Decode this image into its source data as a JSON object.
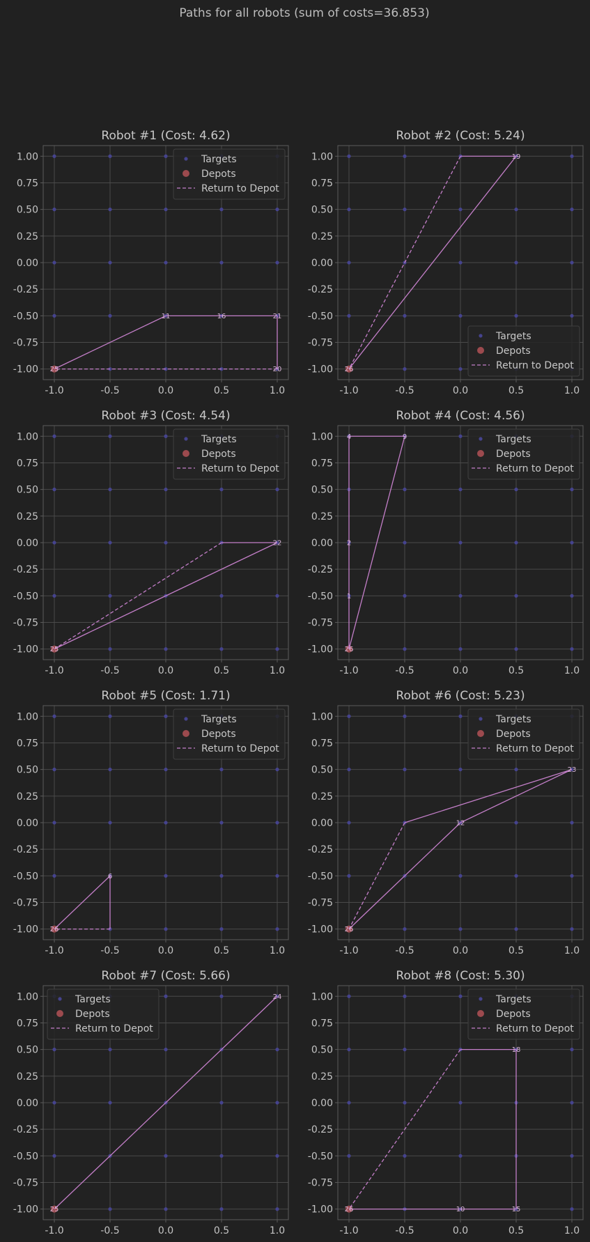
{
  "suptitle": "Paths for all robots (sum of costs=36.853)",
  "colors": {
    "background": "#212121",
    "axes_bg": "#222222",
    "grid": "#4a4a4a",
    "spine": "#5c5c5c",
    "targets": "#45438e",
    "depots": "#9c4a4e",
    "path": "#c47fc9",
    "label": "#d8b6d8",
    "text": "#c8c8c8"
  },
  "legend_labels": {
    "targets": "Targets",
    "depots": "Depots",
    "return": "Return to Depot"
  },
  "chart_data": [
    {
      "type": "scatter",
      "title": "Robot #1 (Cost: 4.62)",
      "xlim": [
        -1.1,
        1.1
      ],
      "ylim": [
        -1.1,
        1.1
      ],
      "xticks": [
        "-1.0",
        "-0.5",
        "0.0",
        "0.5",
        "1.0"
      ],
      "yticks": [
        "1.00",
        "0.75",
        "0.50",
        "0.25",
        "0.00",
        "-0.25",
        "-0.50",
        "-0.75",
        "-1.00"
      ],
      "grid": true,
      "legend": "top-right",
      "path": [
        [
          -1,
          -1
        ],
        [
          0,
          -0.5
        ],
        [
          0.5,
          -0.5
        ],
        [
          1,
          -0.5
        ],
        [
          1,
          -1
        ]
      ],
      "return_path": [
        [
          1,
          -1
        ],
        [
          -1,
          -1
        ]
      ],
      "labels": [
        {
          "x": -1,
          "y": -1,
          "text": "25"
        },
        {
          "x": 0,
          "y": -0.5,
          "text": "11"
        },
        {
          "x": 0.5,
          "y": -0.5,
          "text": "16"
        },
        {
          "x": 1,
          "y": -0.5,
          "text": "21"
        },
        {
          "x": 1,
          "y": -1,
          "text": "20"
        }
      ]
    },
    {
      "type": "scatter",
      "title": "Robot #2 (Cost: 5.24)",
      "xlim": [
        -1.1,
        1.1
      ],
      "ylim": [
        -1.1,
        1.1
      ],
      "xticks": [
        "-1.0",
        "-0.5",
        "0.0",
        "0.5",
        "1.0"
      ],
      "yticks": [
        "1.00",
        "0.75",
        "0.50",
        "0.25",
        "0.00",
        "-0.25",
        "-0.50",
        "-0.75",
        "-1.00"
      ],
      "grid": true,
      "legend": "bottom-right",
      "path": [
        [
          -1,
          -1
        ],
        [
          0.5,
          1
        ],
        [
          0,
          1
        ]
      ],
      "return_path": [
        [
          0,
          1
        ],
        [
          -1,
          -1
        ]
      ],
      "labels": [
        {
          "x": -1,
          "y": -1,
          "text": "26"
        },
        {
          "x": 0.5,
          "y": 1,
          "text": "19"
        }
      ]
    },
    {
      "type": "scatter",
      "title": "Robot #3 (Cost: 4.54)",
      "xlim": [
        -1.1,
        1.1
      ],
      "ylim": [
        -1.1,
        1.1
      ],
      "xticks": [
        "-1.0",
        "-0.5",
        "0.0",
        "0.5",
        "1.0"
      ],
      "yticks": [
        "1.00",
        "0.75",
        "0.50",
        "0.25",
        "0.00",
        "-0.25",
        "-0.50",
        "-0.75",
        "-1.00"
      ],
      "grid": true,
      "legend": "top-right",
      "path": [
        [
          -1,
          -1
        ],
        [
          1,
          0
        ],
        [
          0.5,
          0
        ]
      ],
      "return_path": [
        [
          0.5,
          0
        ],
        [
          -1,
          -1
        ]
      ],
      "labels": [
        {
          "x": -1,
          "y": -1,
          "text": "25"
        },
        {
          "x": 1,
          "y": 0,
          "text": "22"
        }
      ]
    },
    {
      "type": "scatter",
      "title": "Robot #4 (Cost: 4.56)",
      "xlim": [
        -1.1,
        1.1
      ],
      "ylim": [
        -1.1,
        1.1
      ],
      "xticks": [
        "-1.0",
        "-0.5",
        "0.0",
        "0.5",
        "1.0"
      ],
      "yticks": [
        "1.00",
        "0.75",
        "0.50",
        "0.25",
        "0.00",
        "-0.25",
        "-0.50",
        "-0.75",
        "-1.00"
      ],
      "grid": true,
      "legend": "top-right",
      "path": [
        [
          -1,
          -1
        ],
        [
          -1,
          -0.5
        ],
        [
          -1,
          0
        ],
        [
          -1,
          1
        ],
        [
          -0.5,
          1
        ],
        [
          -1,
          -1
        ]
      ],
      "return_path": [],
      "labels": [
        {
          "x": -1,
          "y": -1,
          "text": "26"
        },
        {
          "x": -1,
          "y": -0.5,
          "text": "1"
        },
        {
          "x": -1,
          "y": 0,
          "text": "2"
        },
        {
          "x": -1,
          "y": 1,
          "text": "4"
        },
        {
          "x": -0.5,
          "y": 1,
          "text": "9"
        }
      ]
    },
    {
      "type": "scatter",
      "title": "Robot #5 (Cost: 1.71)",
      "xlim": [
        -1.1,
        1.1
      ],
      "ylim": [
        -1.1,
        1.1
      ],
      "xticks": [
        "-1.0",
        "-0.5",
        "0.0",
        "0.5",
        "1.0"
      ],
      "yticks": [
        "1.00",
        "0.75",
        "0.50",
        "0.25",
        "0.00",
        "-0.25",
        "-0.50",
        "-0.75",
        "-1.00"
      ],
      "grid": true,
      "legend": "top-right",
      "path": [
        [
          -1,
          -1
        ],
        [
          -0.5,
          -0.5
        ],
        [
          -0.5,
          -1
        ]
      ],
      "return_path": [
        [
          -0.5,
          -1
        ],
        [
          -1,
          -1
        ]
      ],
      "labels": [
        {
          "x": -1,
          "y": -1,
          "text": "26"
        },
        {
          "x": -0.5,
          "y": -0.5,
          "text": "6"
        }
      ]
    },
    {
      "type": "scatter",
      "title": "Robot #6 (Cost: 5.23)",
      "xlim": [
        -1.1,
        1.1
      ],
      "ylim": [
        -1.1,
        1.1
      ],
      "xticks": [
        "-1.0",
        "-0.5",
        "0.0",
        "0.5",
        "1.0"
      ],
      "yticks": [
        "1.00",
        "0.75",
        "0.50",
        "0.25",
        "0.00",
        "-0.25",
        "-0.50",
        "-0.75",
        "-1.00"
      ],
      "grid": true,
      "legend": "top-right",
      "path": [
        [
          -1,
          -1
        ],
        [
          0,
          0
        ],
        [
          1,
          0.5
        ],
        [
          -0.5,
          0
        ]
      ],
      "return_path": [
        [
          -0.5,
          0
        ],
        [
          -1,
          -1
        ]
      ],
      "labels": [
        {
          "x": -1,
          "y": -1,
          "text": "26"
        },
        {
          "x": 0,
          "y": 0,
          "text": "12"
        },
        {
          "x": 1,
          "y": 0.5,
          "text": "23"
        }
      ]
    },
    {
      "type": "scatter",
      "title": "Robot #7 (Cost: 5.66)",
      "xlim": [
        -1.1,
        1.1
      ],
      "ylim": [
        -1.1,
        1.1
      ],
      "xticks": [
        "-1.0",
        "-0.5",
        "0.0",
        "0.5",
        "1.0"
      ],
      "yticks": [
        "1.00",
        "0.75",
        "0.50",
        "0.25",
        "0.00",
        "-0.25",
        "-0.50",
        "-0.75",
        "-1.00"
      ],
      "grid": true,
      "legend": "top-left",
      "path": [
        [
          -1,
          -1
        ],
        [
          1,
          1
        ],
        [
          -1,
          -1
        ]
      ],
      "return_path": [],
      "labels": [
        {
          "x": -1,
          "y": -1,
          "text": "25"
        },
        {
          "x": 1,
          "y": 1,
          "text": "24"
        }
      ]
    },
    {
      "type": "scatter",
      "title": "Robot #8 (Cost: 5.30)",
      "xlim": [
        -1.1,
        1.1
      ],
      "ylim": [
        -1.1,
        1.1
      ],
      "xticks": [
        "-1.0",
        "-0.5",
        "0.0",
        "0.5",
        "1.0"
      ],
      "yticks": [
        "1.00",
        "0.75",
        "0.50",
        "0.25",
        "0.00",
        "-0.25",
        "-0.50",
        "-0.75",
        "-1.00"
      ],
      "grid": true,
      "legend": "top-right",
      "path": [
        [
          -1,
          -1
        ],
        [
          0,
          -1
        ],
        [
          0.5,
          -1
        ],
        [
          0.5,
          0.5
        ],
        [
          0,
          0.5
        ]
      ],
      "return_path": [
        [
          0,
          0.5
        ],
        [
          -1,
          -1
        ]
      ],
      "labels": [
        {
          "x": -1,
          "y": -1,
          "text": "26"
        },
        {
          "x": 0,
          "y": -1,
          "text": "10"
        },
        {
          "x": 0.5,
          "y": -1,
          "text": "15"
        },
        {
          "x": 0.5,
          "y": 0.5,
          "text": "18"
        }
      ]
    }
  ]
}
